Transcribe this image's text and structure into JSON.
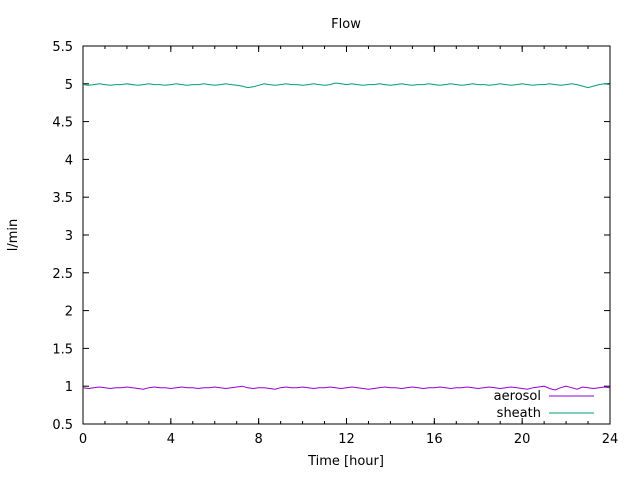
{
  "chart_data": {
    "type": "line",
    "title": "Flow",
    "xlabel": "Time [hour]",
    "ylabel": "l/min",
    "xlim": [
      0,
      24
    ],
    "ylim": [
      0.5,
      5.5
    ],
    "xticks": [
      "0",
      "4",
      "8",
      "12",
      "16",
      "20",
      "24"
    ],
    "x_minor_step": 1,
    "yticks": [
      "0.5",
      "1",
      "1.5",
      "2",
      "2.5",
      "3",
      "3.5",
      "4",
      "4.5",
      "5",
      "5.5"
    ],
    "grid": false,
    "legend_position": "inside-bottom-right",
    "axis_color": "#000000",
    "background_color": "#ffffff",
    "x_start": 0,
    "x_step": 0.25,
    "series": [
      {
        "name": "aerosol",
        "color": "#9400d3",
        "mean": 0.98,
        "values": [
          0.98,
          0.97,
          0.98,
          0.99,
          0.98,
          0.97,
          0.98,
          0.98,
          0.99,
          0.98,
          0.97,
          0.96,
          0.98,
          0.99,
          0.98,
          0.98,
          0.97,
          0.98,
          0.99,
          0.98,
          0.98,
          0.97,
          0.98,
          0.98,
          0.99,
          0.98,
          0.97,
          0.98,
          0.99,
          1.0,
          0.98,
          0.97,
          0.98,
          0.98,
          0.97,
          0.96,
          0.98,
          0.99,
          0.98,
          0.98,
          0.99,
          0.98,
          0.97,
          0.98,
          0.98,
          0.99,
          0.98,
          0.97,
          0.98,
          0.99,
          0.98,
          0.97,
          0.96,
          0.97,
          0.98,
          0.99,
          0.98,
          0.98,
          0.97,
          0.98,
          0.99,
          0.98,
          0.97,
          0.98,
          0.98,
          0.99,
          0.98,
          0.97,
          0.98,
          0.98,
          0.99,
          0.98,
          0.97,
          0.98,
          0.99,
          0.98,
          0.97,
          0.98,
          0.99,
          0.98,
          0.97,
          0.96,
          0.98,
          0.99,
          1.0,
          0.97,
          0.95,
          0.98,
          1.0,
          0.98,
          0.96,
          0.99,
          0.98,
          0.97,
          0.98,
          0.99,
          0.98
        ]
      },
      {
        "name": "sheath",
        "color": "#009e73",
        "mean": 4.99,
        "values": [
          4.99,
          4.98,
          4.99,
          5.0,
          4.99,
          4.98,
          4.99,
          4.99,
          5.0,
          4.99,
          4.98,
          4.99,
          5.0,
          4.99,
          4.99,
          4.98,
          4.99,
          5.0,
          4.99,
          4.98,
          4.99,
          4.99,
          5.0,
          4.99,
          4.98,
          4.99,
          5.0,
          4.99,
          4.98,
          4.97,
          4.95,
          4.96,
          4.98,
          5.0,
          4.99,
          4.98,
          4.99,
          5.0,
          4.99,
          4.99,
          4.98,
          4.99,
          5.0,
          4.99,
          4.98,
          4.99,
          5.01,
          5.0,
          4.99,
          5.0,
          4.99,
          4.98,
          4.99,
          4.99,
          5.0,
          4.99,
          4.98,
          4.99,
          5.0,
          4.99,
          4.98,
          4.99,
          4.99,
          5.0,
          4.99,
          4.98,
          4.99,
          5.0,
          4.99,
          4.98,
          4.99,
          5.0,
          4.99,
          4.99,
          4.98,
          4.99,
          5.0,
          4.99,
          4.98,
          4.99,
          5.0,
          4.99,
          4.98,
          4.99,
          4.99,
          5.0,
          4.99,
          4.98,
          4.99,
          5.0,
          4.99,
          4.97,
          4.95,
          4.97,
          4.99,
          5.0,
          4.99
        ]
      }
    ]
  }
}
